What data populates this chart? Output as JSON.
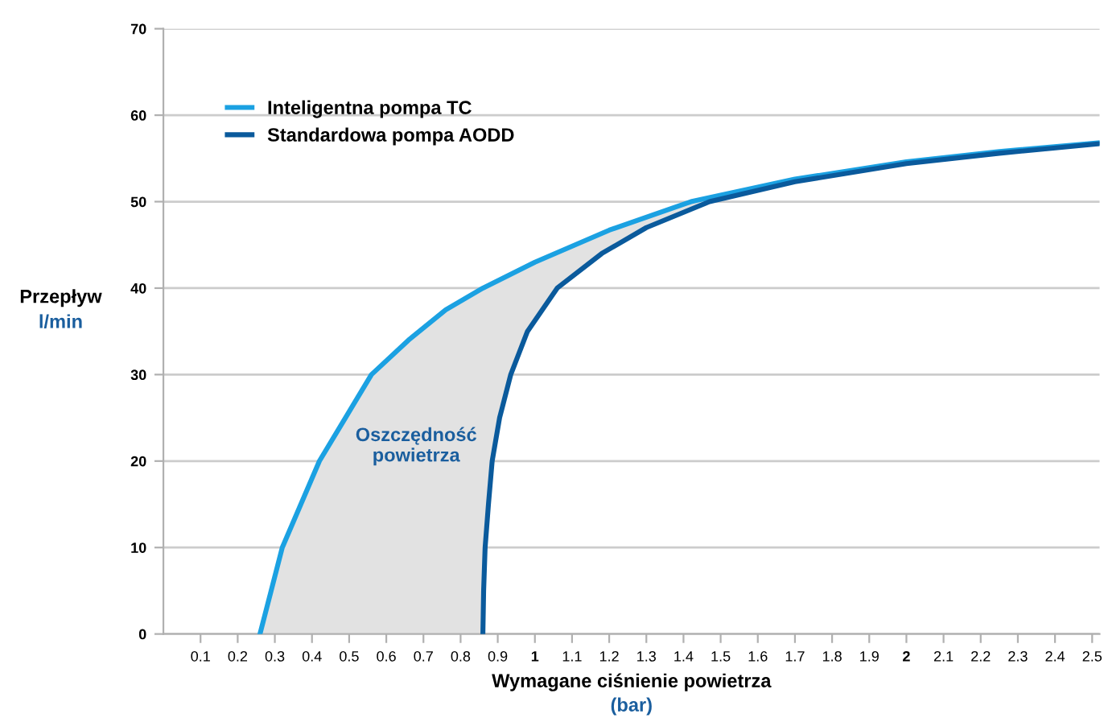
{
  "chart_data": {
    "type": "line",
    "xlabel": "Wymagane ciśnienie powietrza\n(bar)",
    "ylabel": "Przepływ\nl/min",
    "xlim": [
      0,
      2.52
    ],
    "ylim": [
      0,
      70
    ],
    "xticks": [
      0.1,
      0.2,
      0.3,
      0.4,
      0.5,
      0.6,
      0.7,
      0.8,
      0.9,
      1,
      1.1,
      1.2,
      1.3,
      1.4,
      1.5,
      1.6,
      1.7,
      1.8,
      1.9,
      2,
      2.1,
      2.2,
      2.3,
      2.4,
      2.5
    ],
    "yticks": [
      0,
      10,
      20,
      30,
      40,
      50,
      60,
      70
    ],
    "grid": "y",
    "legend": "top left",
    "line_style": "solid",
    "marker": "none",
    "series": [
      {
        "name": "Inteligentna pompa TC",
        "color": "#1ba1e2",
        "x": [
          0.26,
          0.29,
          0.32,
          0.37,
          0.42,
          0.49,
          0.56,
          0.66,
          0.76,
          0.86,
          1.0,
          1.2,
          1.42,
          1.7,
          2.0,
          2.25,
          2.52
        ],
        "values": [
          0,
          5,
          10,
          15,
          20,
          25,
          30,
          34,
          37.5,
          40,
          43,
          46.7,
          50,
          52.6,
          54.6,
          55.8,
          56.8
        ]
      },
      {
        "name": "Standardowa pompa AODD",
        "color": "#0a5a9c",
        "x": [
          0.86,
          0.862,
          0.866,
          0.875,
          0.885,
          0.905,
          0.935,
          0.98,
          1.06,
          1.18,
          1.3,
          1.47,
          1.7,
          2.0,
          2.25,
          2.52
        ],
        "values": [
          0,
          5,
          10,
          15,
          20,
          25,
          30,
          35,
          40,
          44,
          47,
          50,
          52.3,
          54.4,
          55.6,
          56.7
        ]
      }
    ],
    "annotations": [
      "Oszczędność\npowietrza"
    ]
  }
}
